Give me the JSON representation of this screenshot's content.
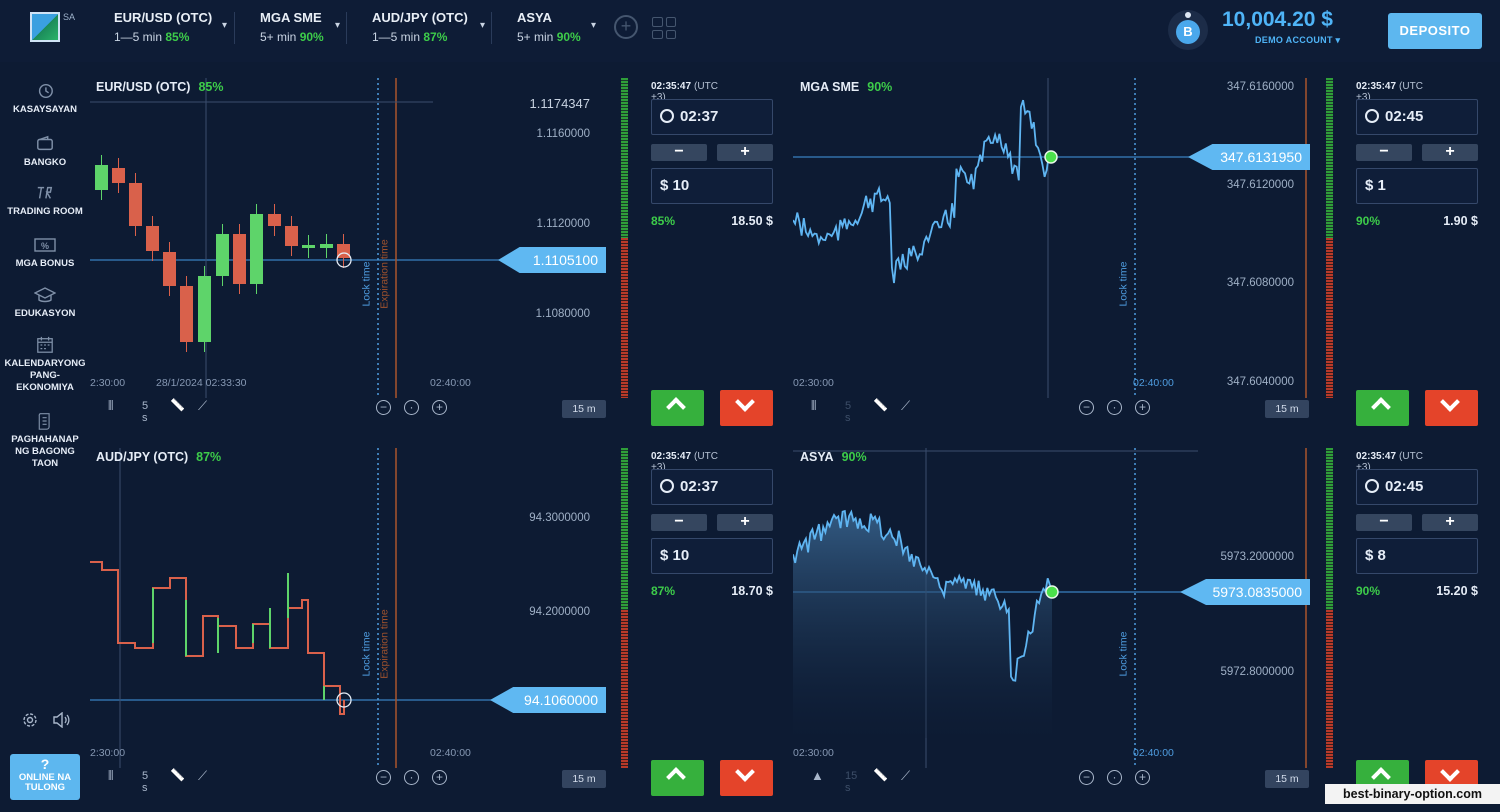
{
  "topbar": {
    "logo_text": "SA",
    "assets": [
      {
        "name": "EUR/USD (OTC)",
        "range": "1—5 min",
        "pct": "85%"
      },
      {
        "name": "MGA SME",
        "range": "5+ min",
        "pct": "90%"
      },
      {
        "name": "AUD/JPY (OTC)",
        "range": "1—5 min",
        "pct": "87%"
      },
      {
        "name": "ASYA",
        "range": "5+ min",
        "pct": "90%"
      }
    ],
    "caret": "▾",
    "add_icon": "plus-circle-icon",
    "layout_icon": "grid-icon",
    "avatar_letter": "B",
    "balance": "10,004.20 $",
    "account": "DEMO ACCOUNT ▾",
    "deposit_label": "DEPOSITO"
  },
  "sidebar": {
    "items": [
      {
        "label": "KASAYSAYAN",
        "icon": "history-icon"
      },
      {
        "label": "BANGKO",
        "icon": "wallet-icon"
      },
      {
        "label": "TRADING ROOM",
        "icon": "trading-room-icon"
      },
      {
        "label": "MGA BONUS",
        "icon": "bonus-icon"
      },
      {
        "label": "EDUKASYON",
        "icon": "graduation-cap-icon"
      },
      {
        "label": "KALENDARYONG PANG-EKONOMIYA",
        "icon": "calendar-icon"
      },
      {
        "label": "PAGHAHANAP NG BAGONG TAON",
        "icon": "scroll-icon"
      }
    ],
    "settings_icon": "gear-icon",
    "sound_icon": "speaker-icon",
    "help_label": "ONLINE NA TULONG",
    "help_icon": "?"
  },
  "charts": [
    {
      "title": "EUR/USD (OTC)",
      "pct": "85%",
      "price_labels": [
        "1.1174347",
        "1.1160000",
        "1.1120000",
        "1.1080000"
      ],
      "current_price": "1.1105100",
      "x_labels": [
        "2:30:00",
        "28/1/2024 02:33:30",
        "02:40:00"
      ],
      "lock_label": "Lock time",
      "expiration_label": "Expiration time",
      "interval": "5 s",
      "timeframe": "15 m",
      "chart_kind": "candles"
    },
    {
      "title": "MGA SME",
      "pct": "90%",
      "price_labels": [
        "347.6160000",
        "347.6120000",
        "347.6080000",
        "347.6040000"
      ],
      "current_price": "347.6131950",
      "x_labels": [
        "02:30:00",
        "02:40:00"
      ],
      "lock_label": "Lock time",
      "interval": "5 s",
      "timeframe": "15 m",
      "chart_kind": "line"
    },
    {
      "title": "AUD/JPY (OTC)",
      "pct": "87%",
      "price_labels": [
        "94.3000000",
        "94.2000000"
      ],
      "current_price": "94.1060000",
      "x_labels": [
        "2:30:00",
        "02:40:00"
      ],
      "lock_label": "Lock time",
      "expiration_label": "Expiration time",
      "interval": "5 s",
      "timeframe": "15 m",
      "chart_kind": "bars"
    },
    {
      "title": "ASYA",
      "pct": "90%",
      "price_labels": [
        "5973.2000000",
        "5972.8000000"
      ],
      "current_price": "5973.0835000",
      "x_labels": [
        "02:30:00",
        "02:40:00"
      ],
      "lock_label": "Lock time",
      "interval": "15 s",
      "timeframe": "15 m",
      "chart_kind": "area"
    }
  ],
  "trades": [
    {
      "clock": "02:35:47",
      "tz": "(UTC +3)",
      "duration": "02:37",
      "amount": "$ 10",
      "pct": "85%",
      "payout": "18.50 $"
    },
    {
      "clock": "02:35:47",
      "tz": "(UTC +3)",
      "duration": "02:45",
      "amount": "$ 1",
      "pct": "90%",
      "payout": "1.90 $"
    },
    {
      "clock": "02:35:47",
      "tz": "(UTC +3)",
      "duration": "02:37",
      "amount": "$ 10",
      "pct": "87%",
      "payout": "18.70 $"
    },
    {
      "clock": "02:35:47",
      "tz": "(UTC +3)",
      "duration": "02:45",
      "amount": "$ 8",
      "pct": "90%",
      "payout": "15.20 $"
    }
  ],
  "controls": {
    "minus": "−",
    "plus": "+"
  },
  "watermark": "best-binary-option.com",
  "colors": {
    "accent": "#5db7ef",
    "up": "#36b03d",
    "down": "#e4442a",
    "profit": "#3dcc4a",
    "background": "#0d1b33"
  }
}
